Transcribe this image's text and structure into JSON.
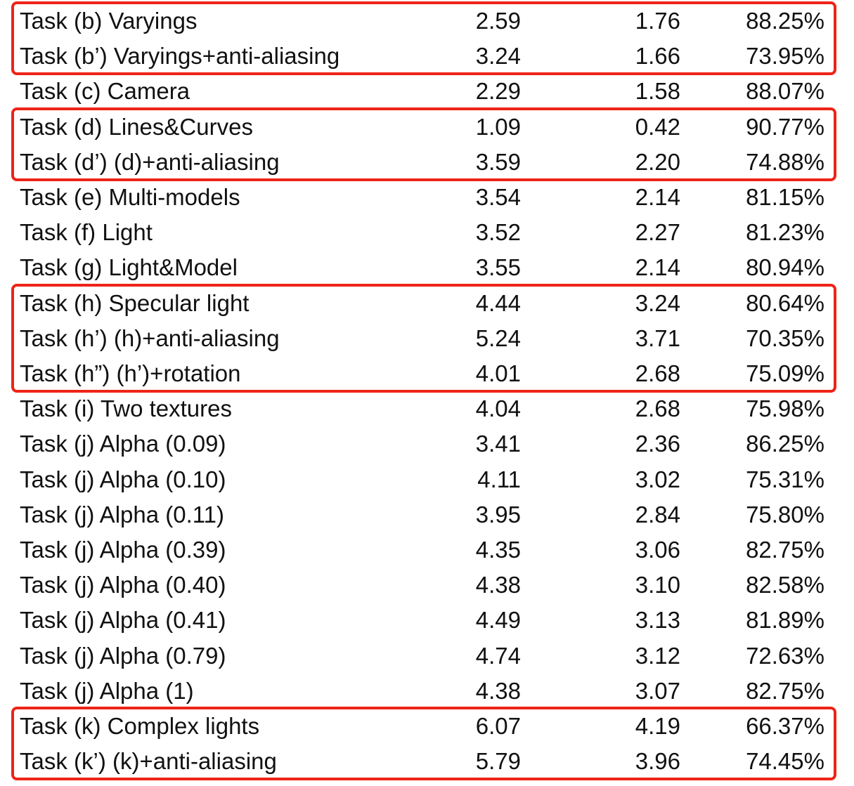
{
  "table": {
    "rows": [
      {
        "task": "Task (b) Varyings",
        "v1": "2.59",
        "v2": "1.76",
        "pct": "88.25%"
      },
      {
        "task": "Task (b’) Varyings+anti-aliasing",
        "v1": "3.24",
        "v2": "1.66",
        "pct": "73.95%"
      },
      {
        "task": "Task (c) Camera",
        "v1": "2.29",
        "v2": "1.58",
        "pct": "88.07%"
      },
      {
        "task": "Task (d) Lines&Curves",
        "v1": "1.09",
        "v2": "0.42",
        "pct": "90.77%"
      },
      {
        "task": "Task (d’) (d)+anti-aliasing",
        "v1": "3.59",
        "v2": "2.20",
        "pct": "74.88%"
      },
      {
        "task": "Task (e) Multi-models",
        "v1": "3.54",
        "v2": "2.14",
        "pct": "81.15%"
      },
      {
        "task": "Task (f) Light",
        "v1": "3.52",
        "v2": "2.27",
        "pct": "81.23%"
      },
      {
        "task": "Task (g) Light&Model",
        "v1": "3.55",
        "v2": "2.14",
        "pct": "80.94%"
      },
      {
        "task": "Task (h) Specular light",
        "v1": "4.44",
        "v2": "3.24",
        "pct": "80.64%"
      },
      {
        "task": "Task (h’) (h)+anti-aliasing",
        "v1": "5.24",
        "v2": "3.71",
        "pct": "70.35%"
      },
      {
        "task": "Task (h”) (h’)+rotation",
        "v1": "4.01",
        "v2": "2.68",
        "pct": "75.09%"
      },
      {
        "task": "Task (i) Two textures",
        "v1": "4.04",
        "v2": "2.68",
        "pct": "75.98%"
      },
      {
        "task": "Task (j) Alpha (0.09)",
        "v1": "3.41",
        "v2": "2.36",
        "pct": "86.25%"
      },
      {
        "task": "Task (j) Alpha (0.10)",
        "v1": "4.11",
        "v2": "3.02",
        "pct": "75.31%"
      },
      {
        "task": "Task (j) Alpha (0.11)",
        "v1": "3.95",
        "v2": "2.84",
        "pct": "75.80%"
      },
      {
        "task": "Task (j) Alpha (0.39)",
        "v1": "4.35",
        "v2": "3.06",
        "pct": "82.75%"
      },
      {
        "task": "Task (j) Alpha (0.40)",
        "v1": "4.38",
        "v2": "3.10",
        "pct": "82.58%"
      },
      {
        "task": "Task (j) Alpha (0.41)",
        "v1": "4.49",
        "v2": "3.13",
        "pct": "81.89%"
      },
      {
        "task": "Task (j) Alpha (0.79)",
        "v1": "4.74",
        "v2": "3.12",
        "pct": "72.63%"
      },
      {
        "task": "Task (j) Alpha (1)",
        "v1": "4.38",
        "v2": "3.07",
        "pct": "82.75%"
      },
      {
        "task": "Task (k) Complex lights",
        "v1": "6.07",
        "v2": "4.19",
        "pct": "66.37%"
      },
      {
        "task": "Task (k’) (k)+anti-aliasing",
        "v1": "5.79",
        "v2": "3.96",
        "pct": "74.45%"
      }
    ],
    "highlight_groups": [
      {
        "first_row": 0,
        "last_row": 1,
        "color": "#ee2418"
      },
      {
        "first_row": 3,
        "last_row": 4,
        "color": "#ee2418"
      },
      {
        "first_row": 8,
        "last_row": 10,
        "color": "#ee2418"
      },
      {
        "first_row": 20,
        "last_row": 21,
        "color": "#ee2418"
      }
    ]
  }
}
